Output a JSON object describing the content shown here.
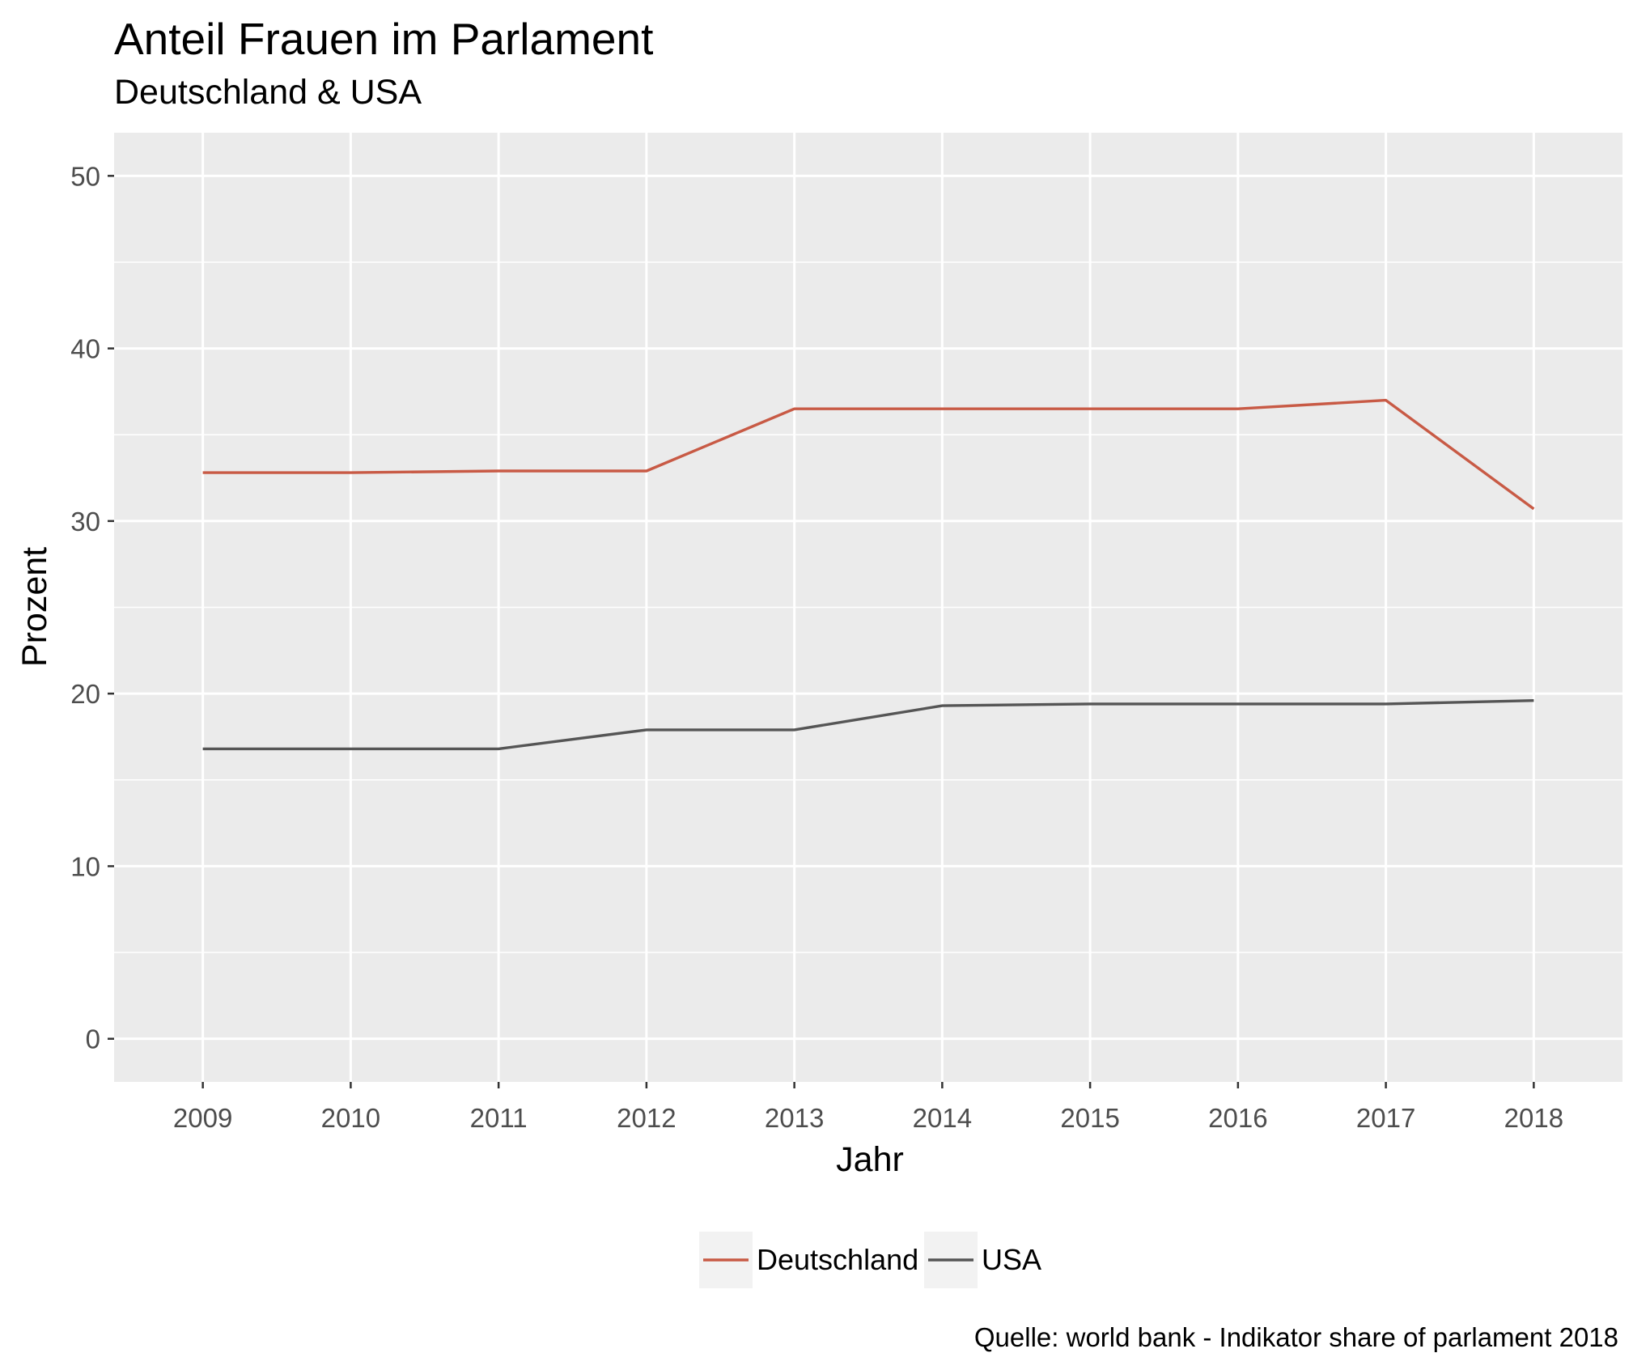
{
  "chart_data": {
    "type": "line",
    "title": "Anteil Frauen im Parlament",
    "subtitle": "Deutschland & USA",
    "caption": "Quelle: world bank - Indikator share of parlament 2018",
    "xlabel": "Jahr",
    "ylabel": "Prozent",
    "x": [
      2009,
      2010,
      2011,
      2012,
      2013,
      2014,
      2015,
      2016,
      2017,
      2018
    ],
    "xlim": [
      2008.4,
      2018.6
    ],
    "ylim": [
      -2.5,
      52.5
    ],
    "yticks": [
      0,
      10,
      20,
      30,
      40,
      50
    ],
    "grid": true,
    "legend_position": "bottom",
    "series": [
      {
        "name": "Deutschland",
        "color": "#c85a45",
        "values": [
          32.8,
          32.8,
          32.9,
          32.9,
          36.5,
          36.5,
          36.5,
          36.5,
          37.0,
          30.7
        ]
      },
      {
        "name": "USA",
        "color": "#555555",
        "values": [
          16.8,
          16.8,
          16.8,
          17.9,
          17.9,
          19.3,
          19.4,
          19.4,
          19.4,
          19.6
        ]
      }
    ]
  }
}
